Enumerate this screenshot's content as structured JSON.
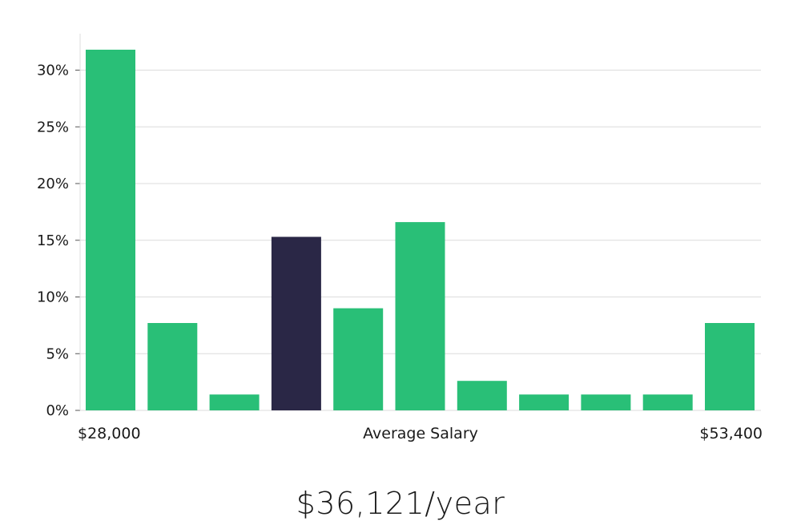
{
  "chart_data": {
    "type": "bar",
    "values": [
      31.8,
      7.7,
      1.4,
      15.3,
      9.0,
      16.6,
      2.6,
      1.4,
      1.4,
      1.4,
      7.7
    ],
    "highlight_index": 3,
    "ylim": [
      0,
      33
    ],
    "yticks": [
      0,
      5,
      10,
      15,
      20,
      25,
      30
    ],
    "ytick_labels": [
      "0%",
      "5%",
      "10%",
      "15%",
      "20%",
      "25%",
      "30%"
    ],
    "x_min_label": "$28,000",
    "x_center_label": "Average Salary",
    "x_max_label": "$53,400",
    "grid": true,
    "colors": {
      "bar": "#29bf77",
      "highlight": "#2a2746",
      "grid": "#dcdcdc"
    }
  },
  "summary": {
    "salary_text": "$36,121/year"
  }
}
